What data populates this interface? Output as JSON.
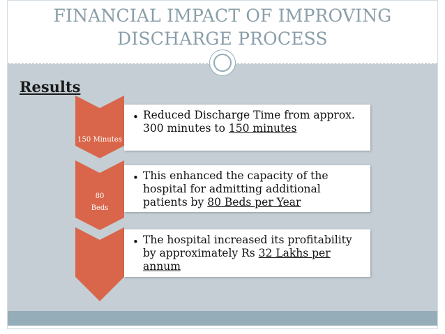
{
  "title": {
    "line1": "FINANCIAL IMPACT OF IMPROVING",
    "line2": "DISCHARGE PROCESS"
  },
  "section_heading": "Results",
  "steps": [
    {
      "label_line1": "150 Minutes",
      "label_line2": "",
      "text_plain": "Reduced Discharge Time from approx. 300 minutes to ",
      "text_emph": "150 minutes",
      "text_tail": ""
    },
    {
      "label_line1": "80",
      "label_line2": "Beds",
      "text_plain": "This enhanced the capacity of the hospital for admitting additional patients by ",
      "text_emph": "80 Beds per Year",
      "text_tail": ""
    },
    {
      "label_line1": "",
      "label_line2": "",
      "text_plain": "The hospital increased its profitability by approximately Rs ",
      "text_emph": "32 Lakhs per annum",
      "text_tail": ""
    }
  ],
  "colors": {
    "chevron": "#d9664a",
    "title": "#8a9ea9",
    "content_bg": "#c4ced4",
    "footer": "#95adb8"
  },
  "bullet_glyph": "•"
}
